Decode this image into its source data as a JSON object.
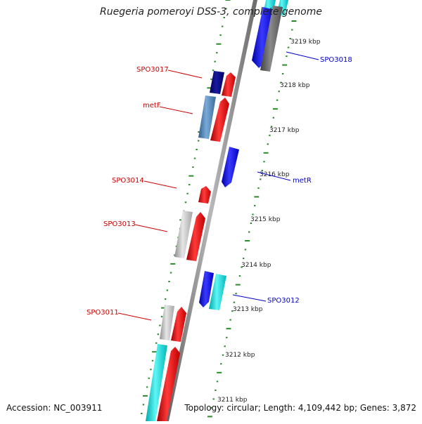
{
  "title": "Ruegeria pomeroyi DSS-3, complete genome",
  "footer": {
    "accession": "Accession: NC_003911",
    "topology": "Topology: circular; Length: 4,109,442 bp; Genes: 3,872"
  },
  "colors": {
    "backbone": "#8c8c8c",
    "tick": "#2a8a2a",
    "forward_label": "#cc0000",
    "reverse_label": "#0000cc"
  },
  "scale_labels": [
    "3219 kbp",
    "3218 kbp",
    "3217 kbp",
    "3216 kbp",
    "3215 kbp",
    "3214 kbp",
    "3213 kbp",
    "3212 kbp",
    "3211 kbp"
  ],
  "features": [
    {
      "label": "SPO3018",
      "strand": "reverse",
      "color": "#0000cc"
    },
    {
      "label": "SPO3017",
      "strand": "forward",
      "color": "#cc0000"
    },
    {
      "label": "metF",
      "strand": "forward",
      "color": "#cc0000"
    },
    {
      "label": "metR",
      "strand": "reverse",
      "color": "#0000cc"
    },
    {
      "label": "SPO3014",
      "strand": "forward",
      "color": "#cc0000"
    },
    {
      "label": "SPO3013",
      "strand": "forward",
      "color": "#cc0000"
    },
    {
      "label": "SPO3012",
      "strand": "reverse",
      "color": "#0000cc"
    },
    {
      "label": "SPO3011",
      "strand": "forward",
      "color": "#cc0000"
    }
  ],
  "track_colors": {
    "cds_forward": "#ff0000",
    "cds_reverse": "#0000ff",
    "cog_cyan": "#00e0e0",
    "cog_navy": "#000080",
    "cog_steel": "#4682b4",
    "cog_gray": "#c0c0c0",
    "cog_dark_gray": "#707070"
  }
}
